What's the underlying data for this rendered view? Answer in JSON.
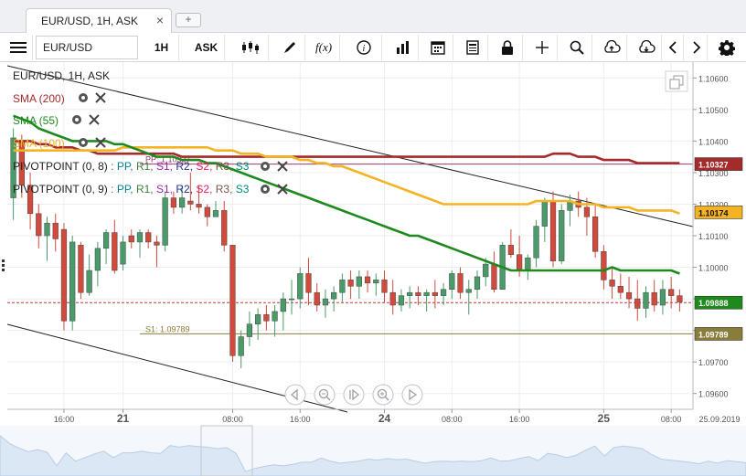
{
  "tab": {
    "title": "EUR/USD, 1H, ASK",
    "close": "×",
    "add": "+"
  },
  "toolbar": {
    "symbol": "EUR/USD",
    "timeframe": "1H",
    "price_side": "ASK",
    "icons": [
      "menu-icon",
      "candle-type-icon",
      "draw-icon",
      "function-icon",
      "info-icon",
      "volume-icon",
      "calendar-icon",
      "notes-icon",
      "lock-icon",
      "crosshair-icon",
      "zoom-icon",
      "upload-icon",
      "download-icon",
      "prev-icon",
      "next-icon",
      "settings-icon"
    ]
  },
  "legend": {
    "instrument": "EUR/USD, 1H, ASK",
    "sma200": "SMA (200)",
    "sma55": "SMA (55)",
    "sma100": "SMA (100)",
    "pivot1": "PIVOTPOINT (0, 8)",
    "pivot2": "PIVOTPOINT (0, 9)",
    "pivot_levels": [
      ": PP,",
      "R1,",
      "S1,",
      "R2,",
      "S2,",
      "R3,",
      "S3"
    ]
  },
  "colors": {
    "sma200": "#a52a2a",
    "sma55": "#1e8a1e",
    "sma100": "#f5b324",
    "bull": "#4a9b6a",
    "bear": "#d24a3c",
    "pp": "#9b3a6e",
    "s1": "#8a7d3a",
    "price": "#222222",
    "pv_pp": "#00838f",
    "pv_r1": "#3a7d3a",
    "pv_s1": "#9c27b0",
    "pv_r2": "#283593",
    "pv_s2": "#e91e63",
    "pv_r3": "#795548",
    "pv_s3": "#00897b"
  },
  "chart_data": {
    "type": "candlestick",
    "y_ticks": [
      "1.10600",
      "1.10500",
      "1.10400",
      "1.10300",
      "1.10200",
      "1.10100",
      "1.10000",
      "1.09900",
      "1.09800",
      "1.09700",
      "1.09600"
    ],
    "ylim": [
      1.0955,
      1.1065
    ],
    "x_ticks": [
      {
        "label": "16:00",
        "bold": false,
        "i": 6
      },
      {
        "label": "21",
        "bold": true,
        "i": 13
      },
      {
        "label": "08:00",
        "bold": false,
        "i": 26
      },
      {
        "label": "16:00",
        "bold": false,
        "i": 34
      },
      {
        "label": "24",
        "bold": true,
        "i": 44
      },
      {
        "label": "08:00",
        "bold": false,
        "i": 52
      },
      {
        "label": "16:00",
        "bold": false,
        "i": 60
      },
      {
        "label": "25",
        "bold": true,
        "i": 70
      },
      {
        "label": "08:00",
        "bold": false,
        "i": 78
      }
    ],
    "date_label": "25.09.2019",
    "price_labels": {
      "sma200": {
        "text": "1.10327",
        "value": 1.10327
      },
      "sma100": {
        "text": "1.10174",
        "value": 1.10174
      },
      "current": {
        "text": "1.09888",
        "value": 1.09888
      },
      "s1": {
        "text": "1.09789",
        "value": 1.09789
      }
    },
    "pivots": {
      "pp_text": "PP: 1.10327",
      "pp": 1.10327,
      "s1_text": "S1: 1.09789",
      "s1": 1.09789
    },
    "current_price": 1.09888,
    "candles": [
      [
        1.1022,
        1.1044,
        1.1015,
        1.1041
      ],
      [
        1.104,
        1.1042,
        1.1022,
        1.1026
      ],
      [
        1.1026,
        1.103,
        1.1012,
        1.1017
      ],
      [
        1.1017,
        1.102,
        1.1006,
        1.101
      ],
      [
        1.101,
        1.1016,
        1.1002,
        1.1014
      ],
      [
        1.1014,
        1.1017,
        1.1005,
        1.1009
      ],
      [
        1.1012,
        1.1014,
        1.098,
        1.0983
      ],
      [
        1.0983,
        1.101,
        1.098,
        1.1008
      ],
      [
        1.1007,
        1.1008,
        1.099,
        1.0992
      ],
      [
        1.0992,
        1.1004,
        1.0991,
        1.0999
      ],
      [
        1.0999,
        1.1008,
        1.0994,
        1.1006
      ],
      [
        1.1006,
        1.1012,
        1.1001,
        1.1011
      ],
      [
        1.1011,
        1.1015,
        1.0998,
        1.0999
      ],
      [
        1.1001,
        1.101,
        1.0999,
        1.1008
      ],
      [
        1.101,
        1.1012,
        1.1006,
        1.1008
      ],
      [
        1.1008,
        1.1012,
        1.1003,
        1.1011
      ],
      [
        1.1011,
        1.1012,
        1.1006,
        1.1008
      ],
      [
        1.1008,
        1.101,
        1.1,
        1.1007
      ],
      [
        1.1007,
        1.1024,
        1.1005,
        1.1022
      ],
      [
        1.1022,
        1.1024,
        1.1017,
        1.1019
      ],
      [
        1.1019,
        1.1026,
        1.1017,
        1.1022
      ],
      [
        1.1021,
        1.103,
        1.1018,
        1.102
      ],
      [
        1.102,
        1.1026,
        1.1017,
        1.1019
      ],
      [
        1.1019,
        1.102,
        1.1013,
        1.1016
      ],
      [
        1.1016,
        1.1021,
        1.1016,
        1.1018
      ],
      [
        1.1018,
        1.1021,
        1.1005,
        1.1007
      ],
      [
        1.1007,
        1.1007,
        1.097,
        1.0972
      ],
      [
        1.0972,
        1.098,
        1.0968,
        1.0978
      ],
      [
        1.0978,
        1.0986,
        1.0975,
        1.0982
      ],
      [
        1.0982,
        1.0987,
        1.0977,
        1.0985
      ],
      [
        1.0985,
        1.0988,
        1.098,
        1.0983
      ],
      [
        1.0983,
        1.0988,
        1.0978,
        1.0986
      ],
      [
        1.0986,
        1.0992,
        1.098,
        1.099
      ],
      [
        1.099,
        1.0996,
        1.0985,
        1.099
      ],
      [
        1.099,
        1.1,
        1.0987,
        1.0998
      ],
      [
        1.0998,
        1.1003,
        1.0988,
        1.0992
      ],
      [
        1.0992,
        1.0995,
        1.0986,
        1.0988
      ],
      [
        1.0988,
        1.0993,
        1.0984,
        1.099
      ],
      [
        1.099,
        1.0994,
        1.0986,
        1.0992
      ],
      [
        1.0992,
        1.0998,
        1.0989,
        1.0996
      ],
      [
        1.0996,
        1.0999,
        1.099,
        1.0994
      ],
      [
        1.0994,
        1.0999,
        1.099,
        1.0997
      ],
      [
        1.0997,
        1.0999,
        1.0992,
        1.0995
      ],
      [
        1.0995,
        1.0998,
        1.0991,
        1.0996
      ],
      [
        1.0996,
        1.0999,
        1.0989,
        1.0992
      ],
      [
        1.0992,
        1.0996,
        1.0985,
        1.0988
      ],
      [
        1.0988,
        1.0993,
        1.0986,
        1.0991
      ],
      [
        1.0991,
        1.0994,
        1.0987,
        1.0992
      ],
      [
        1.0992,
        1.0994,
        1.0988,
        1.0991
      ],
      [
        1.0991,
        1.0993,
        1.0986,
        1.0992
      ],
      [
        1.0992,
        1.0996,
        1.0987,
        1.0991
      ],
      [
        1.0991,
        1.0995,
        1.0988,
        1.0993
      ],
      [
        1.0993,
        1.0999,
        1.099,
        1.0998
      ],
      [
        1.0998,
        1.1,
        1.099,
        1.0992
      ],
      [
        1.0992,
        1.0996,
        1.0985,
        1.0993
      ],
      [
        1.0993,
        1.0999,
        1.099,
        1.0997
      ],
      [
        1.0997,
        1.1003,
        1.0994,
        1.1001
      ],
      [
        1.1001,
        1.1005,
        1.0992,
        1.0993
      ],
      [
        1.0993,
        1.1008,
        1.0993,
        1.1007
      ],
      [
        1.1007,
        1.1012,
        1.1003,
        1.1004
      ],
      [
        1.1004,
        1.101,
        1.0997,
        1.0999
      ],
      [
        1.0999,
        1.1004,
        1.0996,
        1.1003
      ],
      [
        1.1003,
        1.1015,
        1.1,
        1.1013
      ],
      [
        1.1013,
        1.1022,
        1.1008,
        1.1021
      ],
      [
        1.1021,
        1.1024,
        1.1,
        1.1002
      ],
      [
        1.1002,
        1.102,
        1.1001,
        1.1018
      ],
      [
        1.1018,
        1.1023,
        1.1013,
        1.1021
      ],
      [
        1.1021,
        1.1024,
        1.1016,
        1.1019
      ],
      [
        1.1019,
        1.1022,
        1.101,
        1.1016
      ],
      [
        1.1016,
        1.102,
        1.1003,
        1.1005
      ],
      [
        1.1005,
        1.1007,
        1.0993,
        1.0996
      ],
      [
        1.0996,
        1.1,
        1.099,
        1.0994
      ],
      [
        1.0994,
        1.0998,
        1.099,
        1.0992
      ],
      [
        1.0992,
        1.0997,
        1.0987,
        1.099
      ],
      [
        1.099,
        1.0996,
        1.0983,
        1.0987
      ],
      [
        1.0987,
        1.0994,
        1.0984,
        1.0992
      ],
      [
        1.0992,
        1.0996,
        1.0986,
        1.0988
      ],
      [
        1.0988,
        1.0996,
        1.0985,
        1.0993
      ],
      [
        1.0993,
        1.0997,
        1.0987,
        1.0991
      ],
      [
        1.0991,
        1.0993,
        1.0986,
        1.0989
      ]
    ],
    "sma200": [
      1.104,
      1.104,
      1.104,
      1.1039,
      1.1039,
      1.1038,
      1.1038,
      1.1038,
      1.1037,
      1.1037,
      1.1036,
      1.1036,
      1.1036,
      1.1036,
      1.1036,
      1.1036,
      1.1036,
      1.1036,
      1.1036,
      1.1036,
      1.1035,
      1.1035,
      1.1035,
      1.1035,
      1.1035,
      1.1035,
      1.1035,
      1.1035,
      1.1035,
      1.1035,
      1.1035,
      1.1035,
      1.1035,
      1.1035,
      1.1035,
      1.1035,
      1.1035,
      1.1035,
      1.1035,
      1.1035,
      1.1035,
      1.1035,
      1.1035,
      1.1035,
      1.1035,
      1.1035,
      1.1035,
      1.1035,
      1.1035,
      1.1035,
      1.1035,
      1.1035,
      1.1035,
      1.1035,
      1.1035,
      1.1035,
      1.1035,
      1.1035,
      1.1035,
      1.1035,
      1.1035,
      1.1035,
      1.1035,
      1.1035,
      1.1036,
      1.1036,
      1.1036,
      1.1035,
      1.1035,
      1.1035,
      1.1034,
      1.1034,
      1.1034,
      1.1034,
      1.1033,
      1.1033,
      1.1033,
      1.1033,
      1.1033,
      1.1033
    ],
    "sma100": [
      1.1037,
      1.1037,
      1.1037,
      1.1037,
      1.1037,
      1.1037,
      1.1037,
      1.1037,
      1.1037,
      1.1037,
      1.1037,
      1.1037,
      1.1037,
      1.1038,
      1.1038,
      1.1038,
      1.1038,
      1.1038,
      1.1038,
      1.1038,
      1.1038,
      1.1038,
      1.1038,
      1.1038,
      1.1037,
      1.1037,
      1.1037,
      1.1036,
      1.1036,
      1.1036,
      1.1035,
      1.1035,
      1.1035,
      1.1035,
      1.1034,
      1.1034,
      1.1033,
      1.1033,
      1.1032,
      1.1032,
      1.1031,
      1.103,
      1.1029,
      1.1028,
      1.1027,
      1.1026,
      1.1025,
      1.1024,
      1.1023,
      1.1022,
      1.1021,
      1.102,
      1.102,
      1.102,
      1.102,
      1.102,
      1.102,
      1.102,
      1.102,
      1.102,
      1.102,
      1.102,
      1.1021,
      1.1021,
      1.1021,
      1.1021,
      1.1021,
      1.102,
      1.102,
      1.102,
      1.1019,
      1.1019,
      1.1019,
      1.1019,
      1.1018,
      1.1018,
      1.1018,
      1.1018,
      1.1018,
      1.1017
    ],
    "sma55": [
      1.1048,
      1.1047,
      1.1046,
      1.1044,
      1.1043,
      1.1042,
      1.1041,
      1.104,
      1.104,
      1.104,
      1.104,
      1.104,
      1.1039,
      1.1039,
      1.1038,
      1.1037,
      1.1036,
      1.1035,
      1.1035,
      1.1035,
      1.1034,
      1.1034,
      1.1034,
      1.1033,
      1.1033,
      1.1032,
      1.1031,
      1.103,
      1.1029,
      1.1028,
      1.1027,
      1.1026,
      1.1025,
      1.1024,
      1.1023,
      1.1022,
      1.1021,
      1.102,
      1.1019,
      1.1018,
      1.1017,
      1.1016,
      1.1015,
      1.1014,
      1.1013,
      1.1012,
      1.1011,
      1.101,
      1.101,
      1.1009,
      1.1008,
      1.1007,
      1.1006,
      1.1005,
      1.1004,
      1.1003,
      1.1002,
      1.1001,
      1.1,
      1.0999,
      1.0999,
      1.0999,
      1.0999,
      1.0999,
      1.0999,
      1.0999,
      1.0999,
      1.0999,
      1.0999,
      1.0999,
      1.0999,
      1.1,
      1.0999,
      1.0999,
      1.0999,
      1.0999,
      1.0999,
      1.0999,
      1.0999,
      1.0998
    ]
  },
  "nav_buttons": [
    "rewind-icon",
    "zoom-out-icon",
    "pause-icon",
    "zoom-in-icon",
    "play-icon"
  ]
}
